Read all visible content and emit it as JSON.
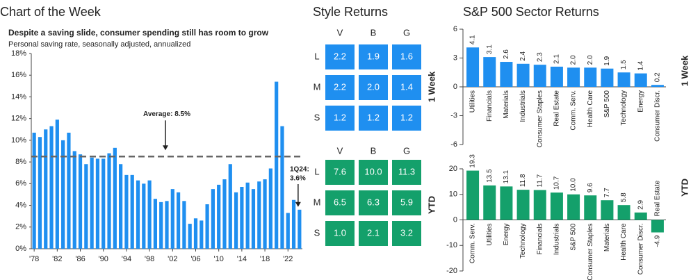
{
  "header": "Chart of the Week",
  "chart_data": [
    {
      "type": "bar",
      "title": "Despite a saving slide, consumer spending still has room to grow",
      "subtitle": "Personal saving rate, seasonally adjusted, annualized",
      "categories": [
        "'78",
        null,
        null,
        null,
        "'82",
        null,
        null,
        null,
        "'86",
        null,
        null,
        null,
        "'90",
        null,
        null,
        null,
        "'94",
        null,
        null,
        null,
        "'98",
        null,
        null,
        null,
        "'02",
        null,
        null,
        null,
        "'06",
        null,
        null,
        null,
        "'10",
        null,
        null,
        null,
        "'14",
        null,
        null,
        null,
        "'18",
        null,
        null,
        null,
        "'22",
        null,
        null
      ],
      "values": [
        10.7,
        10.3,
        11.0,
        11.3,
        11.9,
        10.0,
        10.7,
        9.0,
        8.7,
        7.8,
        8.4,
        8.3,
        8.3,
        8.8,
        9.3,
        7.8,
        6.8,
        6.8,
        6.3,
        6.0,
        6.3,
        4.6,
        4.3,
        4.4,
        5.5,
        5.2,
        4.4,
        2.3,
        2.8,
        2.6,
        4.1,
        5.5,
        5.9,
        6.4,
        7.8,
        5.2,
        5.7,
        6.1,
        5.5,
        6.2,
        6.4,
        7.4,
        15.4,
        11.3,
        3.3,
        4.5,
        3.6
      ],
      "color": "#1f8ff0",
      "ylim": [
        0,
        18
      ],
      "yticks": [
        {
          "value": 0,
          "label": "0%"
        },
        {
          "value": 2,
          "label": "2%"
        },
        {
          "value": 4,
          "label": "4%"
        },
        {
          "value": 6,
          "label": "6%"
        },
        {
          "value": 8,
          "label": "8%"
        },
        {
          "value": 10,
          "label": "10%"
        },
        {
          "value": 12,
          "label": "12%"
        },
        {
          "value": 14,
          "label": "14%"
        },
        {
          "value": 16,
          "label": "16%"
        },
        {
          "value": 18,
          "label": "18%"
        }
      ],
      "average": {
        "value": 8.5,
        "label": "Average: 8.5%"
      },
      "annotation": [
        "1Q24:",
        "3.6%"
      ]
    },
    {
      "type": "bar",
      "label": "1 Week",
      "color": "#1f8ff0",
      "categories": [
        "Utilities",
        "Financials",
        "Materials",
        "Industrials",
        "Consumer Staples",
        "Real Estate",
        "Comm. Serv.",
        "Health Care",
        "S&P 500",
        "Technology",
        "Energy",
        "Consumer Discr."
      ],
      "values": [
        4.1,
        3.1,
        2.6,
        2.4,
        2.3,
        2.1,
        2.0,
        2.0,
        1.9,
        1.5,
        1.4,
        0.2
      ],
      "value_labels": [
        "4.1",
        "3.1",
        "2.6",
        "2.4",
        "2.3",
        "2.1",
        "2.0",
        "2.0",
        "1.9",
        "1.5",
        "1.4",
        "0.2"
      ],
      "ylim": [
        -6,
        6
      ],
      "yticks": [
        -6,
        -3,
        0,
        3,
        6
      ]
    },
    {
      "type": "bar",
      "label": "YTD",
      "color": "#14a06b",
      "categories": [
        "Comm. Serv.",
        "Utilities",
        "Energy",
        "Technology",
        "Financials",
        "Industrials",
        "S&P 500",
        "Consumer Staples",
        "Materials",
        "Health Care",
        "Consumer Discr.",
        "Real Estate"
      ],
      "values": [
        19.3,
        13.5,
        13.1,
        11.8,
        11.7,
        10.7,
        10.0,
        9.6,
        7.7,
        5.8,
        2.9,
        -4.9
      ],
      "value_labels": [
        "19.3",
        "13.5",
        "13.1",
        "11.8",
        "11.7",
        "10.7",
        "10.0",
        "9.6",
        "7.7",
        "5.8",
        "2.9",
        "-4.9"
      ],
      "ylim": [
        -20,
        20
      ],
      "yticks": [
        -20,
        -10,
        0,
        10,
        20
      ]
    }
  ],
  "sector_title": "S&P 500 Sector Returns",
  "style_returns": {
    "title": "Style Returns",
    "tables": [
      {
        "label": "1 Week",
        "color": "#1f8ff0",
        "columns": [
          "V",
          "B",
          "G"
        ],
        "rows": [
          {
            "name": "L",
            "cells": [
              "2.2",
              "1.9",
              "1.6"
            ]
          },
          {
            "name": "M",
            "cells": [
              "2.2",
              "2.0",
              "1.4"
            ]
          },
          {
            "name": "S",
            "cells": [
              "1.2",
              "1.2",
              "1.2"
            ]
          }
        ]
      },
      {
        "label": "YTD",
        "color": "#14a06b",
        "columns": [
          "V",
          "B",
          "G"
        ],
        "rows": [
          {
            "name": "L",
            "cells": [
              "7.6",
              "10.0",
              "11.3"
            ]
          },
          {
            "name": "M",
            "cells": [
              "6.5",
              "6.3",
              "5.9"
            ]
          },
          {
            "name": "S",
            "cells": [
              "1.0",
              "2.1",
              "3.2"
            ]
          }
        ]
      }
    ]
  }
}
